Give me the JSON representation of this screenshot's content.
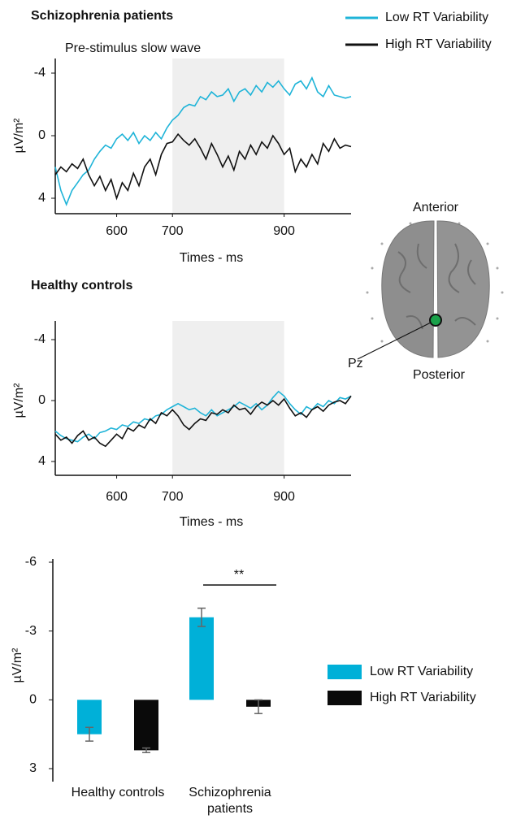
{
  "chart_data": [
    {
      "type": "line",
      "title": "Schizophrenia patients",
      "annotations": [
        {
          "text": "Pre-stimulus slow wave"
        }
      ],
      "xlabel": "Times - ms",
      "ylabel": "µV/m²",
      "x": [
        490,
        500,
        510,
        520,
        530,
        540,
        550,
        560,
        570,
        580,
        590,
        600,
        610,
        620,
        630,
        640,
        650,
        660,
        670,
        680,
        690,
        700,
        710,
        720,
        730,
        740,
        750,
        760,
        770,
        780,
        790,
        800,
        810,
        820,
        830,
        840,
        850,
        860,
        870,
        880,
        890,
        900,
        910,
        920,
        930,
        940,
        950,
        960,
        970,
        980,
        990,
        1000,
        1010,
        1020
      ],
      "xlim": [
        490,
        1020
      ],
      "xticks": [
        600,
        700,
        900
      ],
      "ylim": [
        4,
        -4
      ],
      "yticks": [
        -4,
        0,
        4
      ],
      "shaded_region": [
        700,
        900
      ],
      "legend": "top-right",
      "series": [
        {
          "name": "Low RT Variability",
          "color": "#1fb4d8",
          "values": [
            2,
            3.5,
            4.4,
            3.5,
            3,
            2.5,
            2.2,
            1.5,
            1,
            0.6,
            0.8,
            0.2,
            -0.1,
            0.3,
            -0.2,
            0.5,
            0,
            0.3,
            -0.2,
            0.2,
            -0.5,
            -1,
            -1.3,
            -1.8,
            -2,
            -1.9,
            -2.5,
            -2.3,
            -2.8,
            -2.5,
            -2.6,
            -3,
            -2.2,
            -2.8,
            -3,
            -2.6,
            -3.2,
            -2.8,
            -3.4,
            -3.1,
            -3.5,
            -3,
            -2.6,
            -3.3,
            -3.5,
            -3,
            -3.7,
            -2.8,
            -2.5,
            -3.2,
            -2.6,
            -2.5,
            -2.4,
            -2.5
          ]
        },
        {
          "name": "High RT Variability",
          "color": "#111111",
          "values": [
            2.5,
            2,
            2.3,
            1.8,
            2.1,
            1.5,
            2.5,
            3.2,
            2.6,
            3.5,
            2.8,
            4,
            3,
            3.5,
            2.4,
            3.2,
            2,
            1.5,
            2.5,
            1.2,
            0.5,
            0.4,
            -0.1,
            0.3,
            0.6,
            0.2,
            0.8,
            1.5,
            0.5,
            1.2,
            2,
            1.3,
            2.2,
            1,
            1.5,
            0.6,
            1.2,
            0.4,
            0.8,
            0,
            0.5,
            1.2,
            0.8,
            2.3,
            1.5,
            2,
            1.2,
            1.8,
            0.5,
            1,
            0.2,
            0.8,
            0.6,
            0.7
          ]
        }
      ]
    },
    {
      "type": "line",
      "title": "Healthy controls",
      "xlabel": "Times - ms",
      "ylabel": "µV/m²",
      "x": [
        490,
        500,
        510,
        520,
        530,
        540,
        550,
        560,
        570,
        580,
        590,
        600,
        610,
        620,
        630,
        640,
        650,
        660,
        670,
        680,
        690,
        700,
        710,
        720,
        730,
        740,
        750,
        760,
        770,
        780,
        790,
        800,
        810,
        820,
        830,
        840,
        850,
        860,
        870,
        880,
        890,
        900,
        910,
        920,
        930,
        940,
        950,
        960,
        970,
        980,
        990,
        1000,
        1010,
        1020
      ],
      "xlim": [
        490,
        1020
      ],
      "xticks": [
        600,
        700,
        900
      ],
      "ylim": [
        4,
        -4
      ],
      "yticks": [
        -4,
        0,
        4
      ],
      "shaded_region": [
        700,
        900
      ],
      "series": [
        {
          "color": "#1fb4d8",
          "values": [
            2,
            2.3,
            2.5,
            2.6,
            2.7,
            2.4,
            2.2,
            2.5,
            2.1,
            2,
            1.8,
            1.9,
            1.6,
            1.7,
            1.4,
            1.5,
            1.2,
            1.3,
            1,
            0.9,
            0.6,
            0.4,
            0.2,
            0.4,
            0.6,
            0.5,
            0.8,
            1,
            0.6,
            1,
            0.8,
            0.6,
            0.4,
            0.1,
            0.3,
            0.5,
            0.2,
            0.6,
            0.3,
            -0.2,
            -0.6,
            -0.3,
            0.2,
            0.6,
            0.9,
            0.4,
            0.6,
            0.2,
            0.4,
            0,
            0.2,
            -0.2,
            -0.1,
            -0.3
          ]
        },
        {
          "color": "#111111",
          "values": [
            2.2,
            2.6,
            2.4,
            2.8,
            2.3,
            2,
            2.6,
            2.4,
            2.8,
            3,
            2.6,
            2.2,
            2.5,
            1.8,
            2,
            1.6,
            1.8,
            1.2,
            1.5,
            0.8,
            1,
            0.6,
            1,
            1.6,
            1.9,
            1.5,
            1.2,
            1.3,
            0.8,
            0.9,
            0.6,
            0.8,
            0.3,
            0.6,
            0.5,
            0.9,
            0.4,
            0.1,
            0.3,
            0,
            0.3,
            -0.1,
            0.5,
            1,
            0.8,
            1.1,
            0.6,
            0.4,
            0.7,
            0.3,
            0.1,
            0,
            0.2,
            -0.3
          ]
        }
      ]
    },
    {
      "type": "bar",
      "ylabel": "µV/m²",
      "categories": [
        "Healthy controls",
        "Schizophrenia patients"
      ],
      "ylim": [
        3,
        -6
      ],
      "yticks": [
        -6,
        -3,
        0,
        3
      ],
      "annotations": [
        {
          "text": "**"
        }
      ],
      "legend": "right",
      "series": [
        {
          "name": "Low RT Variability",
          "color": "#00b0d8",
          "values": [
            1.5,
            -3.6
          ],
          "errors": [
            0.3,
            0.4
          ]
        },
        {
          "name": "High RT Variability",
          "color": "#0a0a0a",
          "values": [
            2.2,
            0.3
          ],
          "errors": [
            0.1,
            0.3
          ]
        }
      ]
    }
  ],
  "diagram": {
    "anterior": "Anterior",
    "posterior": "Posterior",
    "electrode": "Pz"
  }
}
